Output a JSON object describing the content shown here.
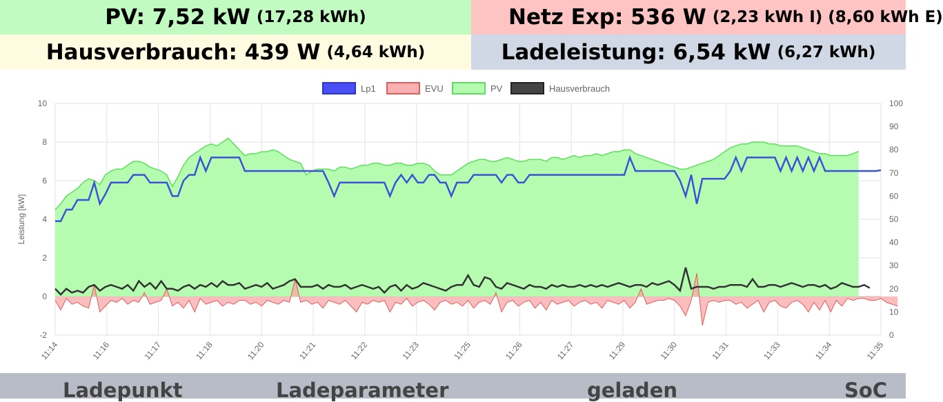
{
  "tiles": {
    "pv": {
      "main": "PV: 7,52 kW",
      "sub": "(17,28 kWh)"
    },
    "netz": {
      "main": "Netz Exp: 536 W",
      "sub": "(2,23 kWh I) (8,60 kWh E)"
    },
    "haus": {
      "main": "Hausverbrauch: 439 W",
      "sub": "(4,64 kWh)"
    },
    "lade": {
      "main": "Ladeleistung: 6,54 kW",
      "sub": "(6,27 kWh)"
    }
  },
  "footer": {
    "ladepunkt": "Ladepunkt",
    "ladeparameter": "Ladeparameter",
    "geladen": "geladen",
    "soc": "SoC"
  },
  "colors": {
    "pv_tile": "#c2fbc2",
    "netz_tile": "#fec3c3",
    "haus_tile": "#fefbe1",
    "lade_tile": "#d1d8e5",
    "lp1": "#3b52d6",
    "evu_fill": "#f8a8a8",
    "evu_line": "#e35a5a",
    "pv_fill": "#b5fbb0",
    "pv_line": "#5ae05a",
    "haus": "#333333"
  },
  "chart_data": {
    "type": "area",
    "ylabel": "Leistung [kW]",
    "ylim": [
      -2,
      10
    ],
    "y_ticks": [
      "10",
      "8",
      "6",
      "4",
      "2",
      "0",
      "-2"
    ],
    "y2lim": [
      0,
      100
    ],
    "y2_ticks": [
      "100",
      "90",
      "80",
      "70",
      "60",
      "50",
      "40",
      "30",
      "20",
      "10",
      "0"
    ],
    "x_ticks": [
      "11:14",
      "11:16",
      "11:17",
      "11:18",
      "11:20",
      "11:21",
      "11:22",
      "11:23",
      "11:25",
      "11:26",
      "11:27",
      "11:29",
      "11:30",
      "11:31",
      "11:33",
      "11:34",
      "11:35"
    ],
    "grid": true,
    "legend_position": "top",
    "series": [
      {
        "name": "Lp1",
        "values": [
          3.9,
          3.9,
          4.5,
          4.5,
          5.0,
          5.0,
          5.0,
          5.9,
          4.8,
          5.3,
          5.9,
          5.9,
          5.9,
          5.9,
          6.3,
          6.3,
          6.3,
          5.9,
          5.9,
          5.9,
          5.9,
          5.2,
          5.2,
          6.0,
          6.3,
          6.3,
          7.2,
          6.5,
          7.2,
          7.2,
          7.2,
          7.2,
          7.2,
          7.2,
          6.5,
          6.5,
          6.5,
          6.5,
          6.5,
          6.5,
          6.5,
          6.5,
          6.5,
          6.5,
          6.5,
          6.5,
          6.5,
          6.5,
          6.5,
          5.9,
          5.2,
          5.9,
          5.9,
          5.9,
          5.9,
          5.9,
          5.9,
          5.9,
          5.9,
          5.9,
          5.2,
          5.9,
          6.3,
          5.9,
          6.3,
          5.9,
          5.9,
          6.3,
          6.3,
          5.9,
          5.9,
          5.2,
          5.9,
          5.9,
          5.9,
          6.3,
          6.3,
          6.3,
          6.3,
          6.3,
          5.9,
          6.3,
          6.3,
          5.9,
          5.9,
          6.3,
          6.3,
          6.3,
          6.3,
          6.3,
          6.3,
          6.3,
          6.3,
          6.3,
          6.3,
          6.3,
          6.3,
          6.3,
          6.3,
          6.3,
          6.3,
          6.3,
          6.3,
          7.2,
          6.5,
          6.5,
          6.5,
          6.5,
          6.5,
          6.5,
          6.5,
          6.5,
          6.0,
          5.2,
          6.3,
          4.8,
          6.1,
          6.1,
          6.1,
          6.1,
          6.1,
          6.5,
          7.2,
          6.5,
          7.2,
          7.2,
          7.2,
          7.2,
          7.2,
          7.2,
          6.5,
          7.2,
          6.5,
          7.2,
          6.5,
          7.2,
          6.5,
          7.2,
          6.5,
          6.5,
          6.5,
          6.5,
          6.5,
          6.5,
          6.5,
          6.5,
          6.5,
          6.5,
          6.54
        ]
      },
      {
        "name": "EVU",
        "values": [
          -0.2,
          -0.7,
          -0.1,
          -0.4,
          -0.3,
          -0.5,
          -0.6,
          0.6,
          -0.8,
          -0.5,
          -0.2,
          -0.3,
          -0.1,
          -0.4,
          -0.2,
          -0.3,
          0.2,
          -0.4,
          -0.3,
          -0.2,
          0.4,
          -0.5,
          -0.3,
          -0.6,
          -0.2,
          -0.8,
          -0.1,
          -0.4,
          -0.3,
          -0.2,
          -0.5,
          -0.3,
          -0.4,
          -0.2,
          -0.2,
          -0.4,
          -0.3,
          -0.5,
          -0.2,
          -0.3,
          -0.4,
          -0.2,
          -0.3,
          0.9,
          -0.3,
          -0.2,
          -0.4,
          -0.3,
          -0.6,
          -0.2,
          -0.3,
          -0.4,
          -0.2,
          -0.5,
          -0.8,
          -0.3,
          -0.4,
          -0.2,
          -0.3,
          -0.2,
          -0.8,
          -0.3,
          -0.4,
          -0.1,
          -0.5,
          -0.3,
          -0.2,
          -0.4,
          -0.7,
          -0.3,
          -0.2,
          -0.4,
          -0.3,
          -0.5,
          -0.2,
          -0.6,
          -0.3,
          -0.2,
          -0.4,
          0.2,
          -0.8,
          -0.3,
          -0.2,
          -0.5,
          -0.3,
          -0.2,
          -0.6,
          -0.3,
          -0.7,
          -0.2,
          -0.4,
          -0.3,
          -0.2,
          -0.5,
          -0.3,
          -0.2,
          -0.4,
          -0.3,
          -0.6,
          -0.2,
          -0.3,
          -0.4,
          -0.2,
          -0.6,
          -0.3,
          0.4,
          -0.4,
          -0.3,
          -0.2,
          -0.2,
          -0.1,
          -0.2,
          -0.5,
          -1.0,
          -0.2,
          1.2,
          -1.5,
          -0.3,
          -0.2,
          -0.3,
          -0.2,
          -0.2,
          -0.4,
          -0.3,
          -0.6,
          -0.4,
          -0.2,
          -0.8,
          -0.3,
          -0.2,
          -0.5,
          -0.6,
          -0.3,
          -0.2,
          -0.4,
          -0.8,
          -0.3,
          -0.7,
          -0.2,
          -0.8,
          -0.2,
          -0.5,
          -0.1,
          -0.2,
          -0.1,
          -0.1,
          -0.2,
          -0.2,
          -0.1,
          -0.3,
          -0.4,
          -0.5
        ]
      },
      {
        "name": "PV",
        "values": [
          4.5,
          4.8,
          5.2,
          5.4,
          5.6,
          5.9,
          6.1,
          6.0,
          5.8,
          6.3,
          6.5,
          6.6,
          6.6,
          6.8,
          7.0,
          7.0,
          6.9,
          6.7,
          6.6,
          6.5,
          6.3,
          5.7,
          6.2,
          6.8,
          7.2,
          7.4,
          7.6,
          7.8,
          7.9,
          7.8,
          8.0,
          8.2,
          7.9,
          7.6,
          7.3,
          7.4,
          7.4,
          7.5,
          7.5,
          7.6,
          7.5,
          7.3,
          7.1,
          7.0,
          6.9,
          6.3,
          6.5,
          6.6,
          6.6,
          6.6,
          6.5,
          6.7,
          6.7,
          6.6,
          6.7,
          6.8,
          6.8,
          6.9,
          6.9,
          6.8,
          6.8,
          6.9,
          6.9,
          6.8,
          6.8,
          6.9,
          6.9,
          6.8,
          6.5,
          6.3,
          6.3,
          6.3,
          6.5,
          6.7,
          6.9,
          7.0,
          7.1,
          7.1,
          7.0,
          7.0,
          7.1,
          7.2,
          7.1,
          7.0,
          7.0,
          7.1,
          7.1,
          7.1,
          7.0,
          7.2,
          7.2,
          7.1,
          7.2,
          7.3,
          7.2,
          7.3,
          7.3,
          7.4,
          7.3,
          7.4,
          7.5,
          7.5,
          7.6,
          7.6,
          7.4,
          7.3,
          7.2,
          7.1,
          7.0,
          6.9,
          6.8,
          6.7,
          6.6,
          6.6,
          6.7,
          6.8,
          6.9,
          7.0,
          7.1,
          7.3,
          7.5,
          7.7,
          7.8,
          7.9,
          7.9,
          8.0,
          8.0,
          8.0,
          7.9,
          7.9,
          7.8,
          7.8,
          7.8,
          7.8,
          7.7,
          7.6,
          7.5,
          7.4,
          7.4,
          7.3,
          7.3,
          7.3,
          7.3,
          7.4,
          7.52
        ]
      },
      {
        "name": "Hausverbrauch",
        "values": [
          0.4,
          0.1,
          0.4,
          0.2,
          0.3,
          0.2,
          0.5,
          0.6,
          0.3,
          0.5,
          0.6,
          0.5,
          0.4,
          0.6,
          0.3,
          0.8,
          0.5,
          0.7,
          0.4,
          0.8,
          0.4,
          0.4,
          0.3,
          0.5,
          0.6,
          0.4,
          0.6,
          0.5,
          0.7,
          0.5,
          0.8,
          0.6,
          0.6,
          0.7,
          0.4,
          0.5,
          0.6,
          0.5,
          0.7,
          0.4,
          0.5,
          0.6,
          0.8,
          0.9,
          0.5,
          0.5,
          0.5,
          0.6,
          0.4,
          0.6,
          0.5,
          0.5,
          0.6,
          0.4,
          0.5,
          0.6,
          0.5,
          0.4,
          0.5,
          0.2,
          0.5,
          0.6,
          0.3,
          0.6,
          0.4,
          0.5,
          0.7,
          0.6,
          0.5,
          0.4,
          0.3,
          0.5,
          0.6,
          0.6,
          1.1,
          0.6,
          0.5,
          1.0,
          0.9,
          0.5,
          0.4,
          0.7,
          0.6,
          0.5,
          0.4,
          0.6,
          0.5,
          0.5,
          0.4,
          0.6,
          0.5,
          0.6,
          0.5,
          0.5,
          0.6,
          0.5,
          0.6,
          0.5,
          0.6,
          0.5,
          0.6,
          0.7,
          0.6,
          0.5,
          0.6,
          0.6,
          0.5,
          0.7,
          0.6,
          0.7,
          0.8,
          0.6,
          0.3,
          1.5,
          0.4,
          0.5,
          0.5,
          0.5,
          0.4,
          0.5,
          0.5,
          0.6,
          0.6,
          0.6,
          0.5,
          0.9,
          0.5,
          0.5,
          0.6,
          0.6,
          0.5,
          0.6,
          0.7,
          0.6,
          0.5,
          0.6,
          0.6,
          0.5,
          0.6,
          0.4,
          0.5,
          0.7,
          0.6,
          0.5,
          0.5,
          0.6,
          0.44
        ]
      }
    ]
  }
}
